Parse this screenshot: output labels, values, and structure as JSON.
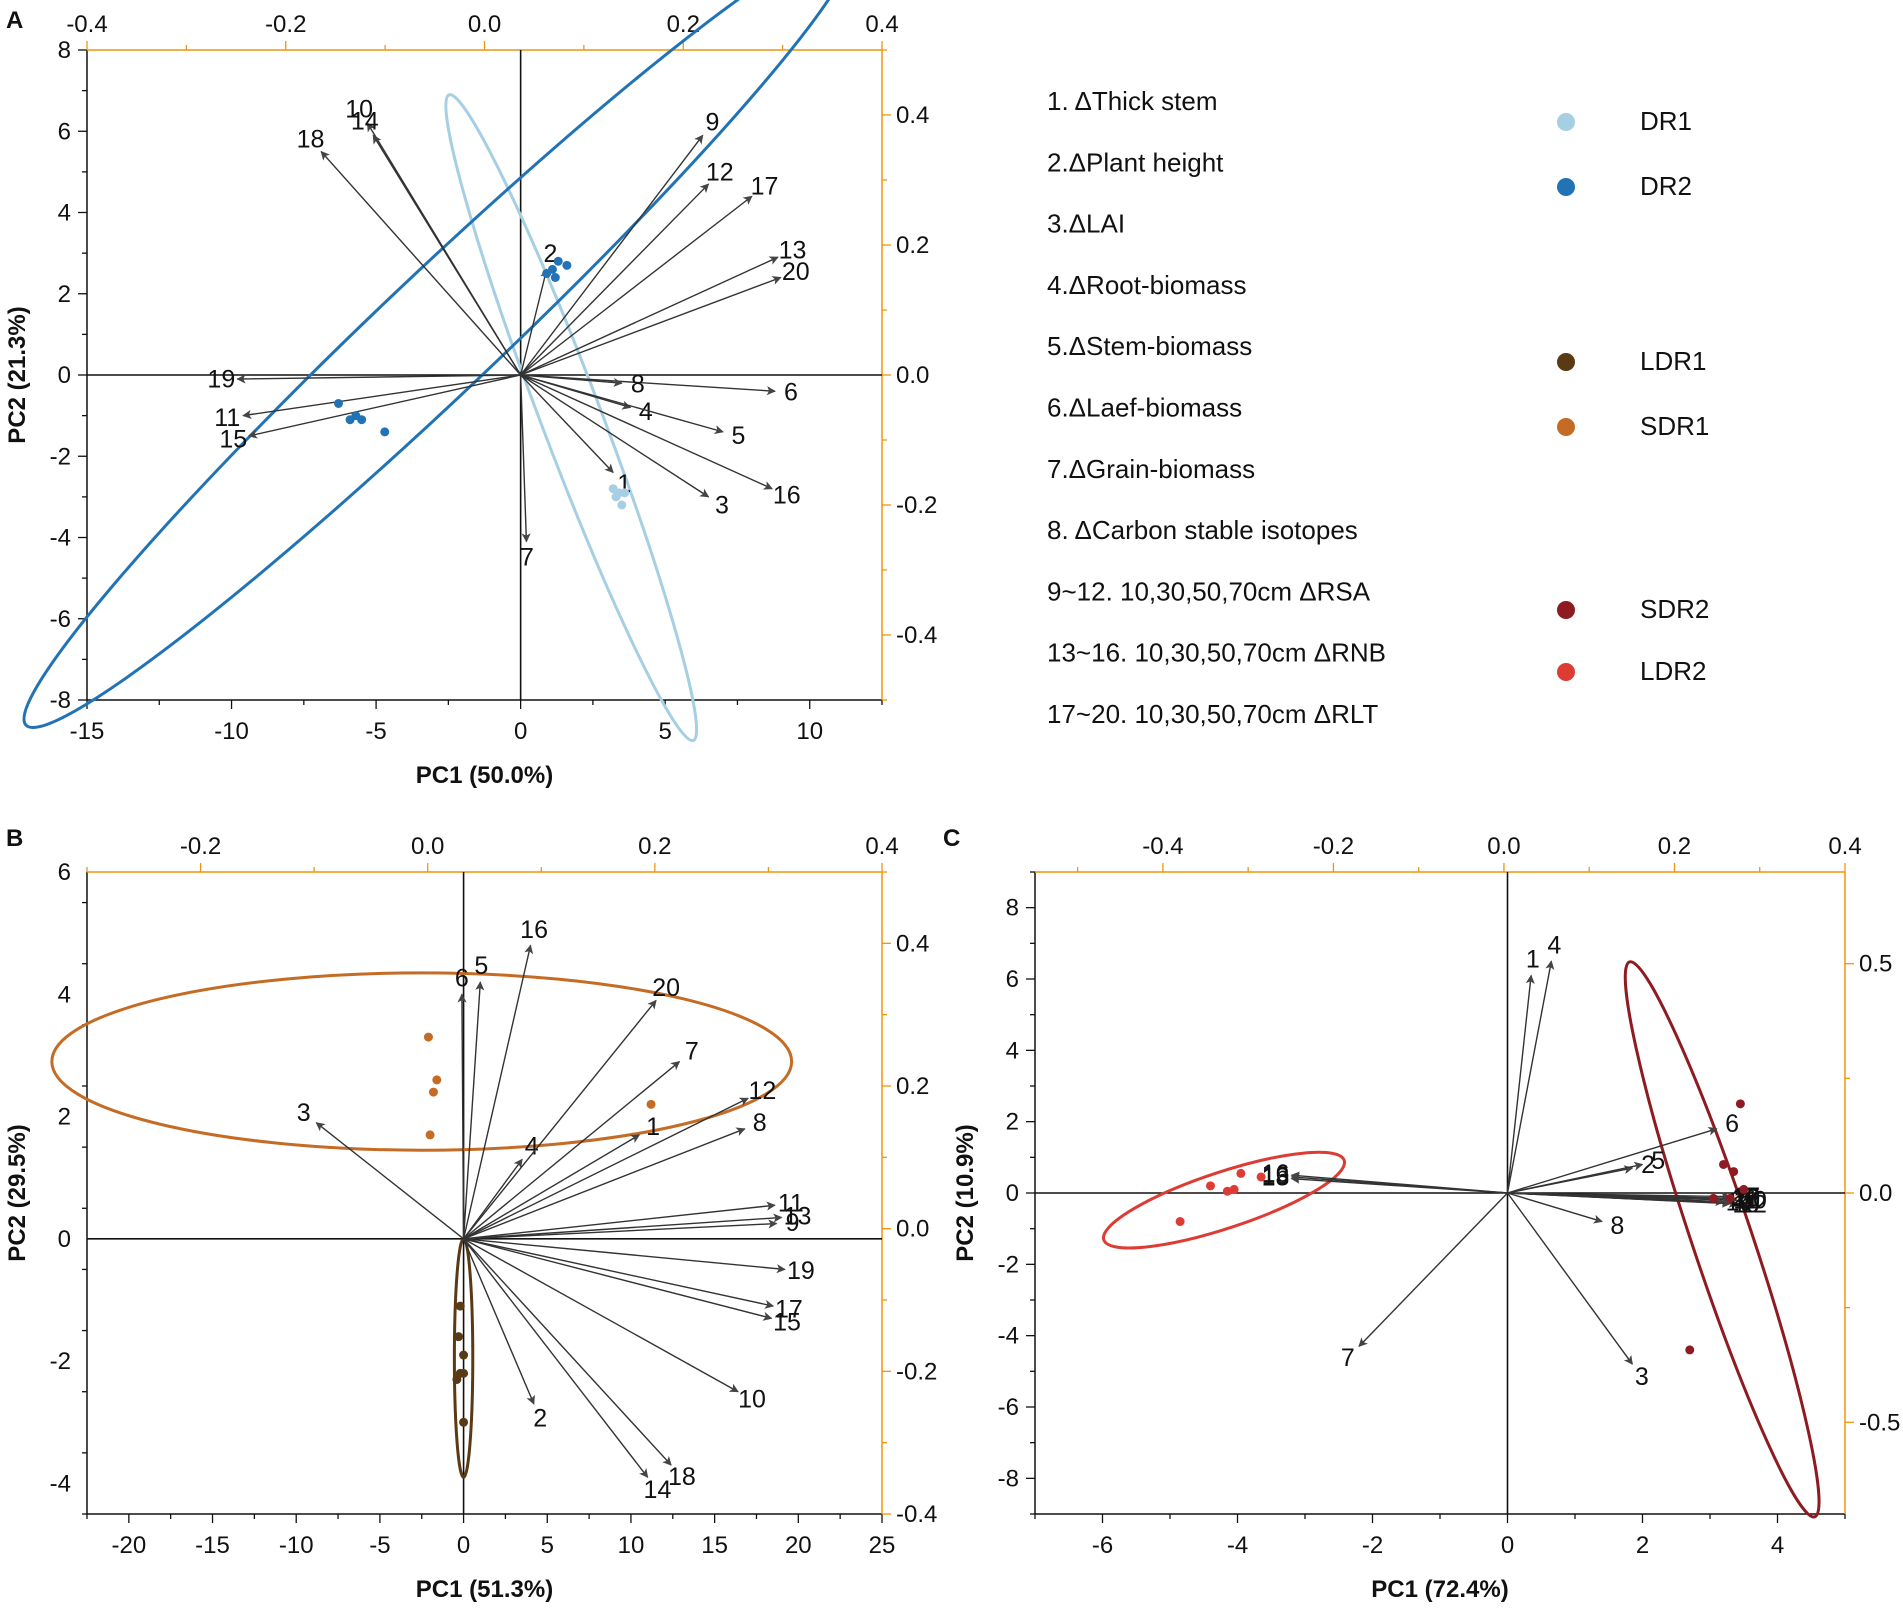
{
  "colors": {
    "DR1": "#a6cfe3",
    "DR2": "#2273b5",
    "LDR1": "#5a3a14",
    "SDR1": "#c46c25",
    "SDR2": "#8e1b22",
    "LDR2": "#dd3c35",
    "axis_secondary": "#f0950a",
    "vector": "#333333"
  },
  "legend": {
    "variables": [
      "1. ΔThick stem",
      "2.ΔPlant height",
      "3.ΔLAI",
      "4.ΔRoot-biomass",
      "5.ΔStem-biomass",
      "6.ΔLaef-biomass",
      "7.ΔGrain-biomass",
      "8. ΔCarbon stable isotopes",
      "9~12. 10,30,50,70cm ΔRSA",
      "13~16. 10,30,50,70cm ΔRNB",
      "17~20. 10,30,50,70cm ΔRLT"
    ],
    "groups": [
      {
        "name": "DR1",
        "color": "#a6cfe3"
      },
      {
        "name": "DR2",
        "color": "#2273b5"
      },
      {
        "name": "LDR1",
        "color": "#5a3a14"
      },
      {
        "name": "SDR1",
        "color": "#c46c25"
      },
      {
        "name": "SDR2",
        "color": "#8e1b22"
      },
      {
        "name": "LDR2",
        "color": "#dd3c35"
      }
    ]
  },
  "chart_data": [
    {
      "panel": "A",
      "type": "scatter",
      "title": "",
      "xlabel": "PC1 (50.0%)",
      "ylabel": "PC2 (21.3%)",
      "xlim": [
        -15,
        12.5
      ],
      "ylim": [
        -8,
        8
      ],
      "xticks": [
        -15,
        -10,
        -5,
        0,
        5,
        10
      ],
      "yticks": [
        -8,
        -6,
        -4,
        -2,
        0,
        2,
        4,
        6,
        8
      ],
      "top_axis": {
        "lim": [
          -0.4,
          0.4
        ],
        "ticks": [
          -0.4,
          -0.2,
          0.0,
          0.2,
          0.4
        ]
      },
      "right_axis": {
        "lim": [
          -0.5,
          0.5
        ],
        "ticks": [
          -0.4,
          -0.2,
          0.0,
          0.2,
          0.4
        ]
      },
      "vectors": [
        {
          "label": "1",
          "x": 3.2,
          "y": -2.4
        },
        {
          "label": "2",
          "x": 0.9,
          "y": 2.6
        },
        {
          "label": "3",
          "x": 6.5,
          "y": -3.0
        },
        {
          "label": "4",
          "x": 3.8,
          "y": -0.8
        },
        {
          "label": "5",
          "x": 7.0,
          "y": -1.4
        },
        {
          "label": "6",
          "x": 8.8,
          "y": -0.4
        },
        {
          "label": "7",
          "x": 0.2,
          "y": -4.1
        },
        {
          "label": "8",
          "x": 3.5,
          "y": -0.2
        },
        {
          "label": "9",
          "x": 6.3,
          "y": 5.9
        },
        {
          "label": "10",
          "x": -5.3,
          "y": 6.2
        },
        {
          "label": "11",
          "x": -9.6,
          "y": -1.0
        },
        {
          "label": "12",
          "x": 6.5,
          "y": 4.7
        },
        {
          "label": "13",
          "x": 8.9,
          "y": 2.9
        },
        {
          "label": "14",
          "x": -5.1,
          "y": 5.9
        },
        {
          "label": "15",
          "x": -9.4,
          "y": -1.5
        },
        {
          "label": "16",
          "x": 8.7,
          "y": -2.8
        },
        {
          "label": "17",
          "x": 8.0,
          "y": 4.4
        },
        {
          "label": "18",
          "x": -6.9,
          "y": 5.5
        },
        {
          "label": "19",
          "x": -9.8,
          "y": -0.1
        },
        {
          "label": "20",
          "x": 9.0,
          "y": 2.4
        }
      ],
      "groups": [
        {
          "name": "DR1",
          "points": [
            [
              3.2,
              -2.8
            ],
            [
              3.4,
              -2.9
            ],
            [
              3.5,
              -3.2
            ],
            [
              3.3,
              -3.0
            ],
            [
              3.6,
              -2.9
            ]
          ]
        },
        {
          "name": "DR2",
          "points": [
            [
              0.9,
              2.5
            ],
            [
              1.1,
              2.6
            ],
            [
              1.3,
              2.8
            ],
            [
              1.6,
              2.7
            ],
            [
              1.2,
              2.4
            ],
            [
              -6.3,
              -0.7
            ],
            [
              -5.7,
              -1.0
            ],
            [
              -5.5,
              -1.1
            ],
            [
              -5.9,
              -1.1
            ],
            [
              -4.7,
              -1.4
            ]
          ]
        }
      ],
      "ellipses": [
        {
          "group": "DR1",
          "center": [
            1.75,
            -1.05
          ],
          "rx": 9.0,
          "ry": 0.95,
          "angle_deg": -62
        },
        {
          "group": "DR2",
          "center": [
            -2.85,
            1.0
          ],
          "rx": 17.2,
          "ry": 1.6,
          "angle_deg": 34
        }
      ]
    },
    {
      "panel": "B",
      "type": "scatter",
      "title": "",
      "xlabel": "PC1 (51.3%)",
      "ylabel": "PC2 (29.5%)",
      "xlim": [
        -22.5,
        25
      ],
      "ylim": [
        -4.5,
        6
      ],
      "xticks": [
        -20,
        -15,
        -10,
        -5,
        0,
        5,
        10,
        15,
        20,
        25
      ],
      "yticks": [
        -4,
        -2,
        0,
        2,
        4,
        6
      ],
      "top_axis": {
        "lim": [
          -0.3,
          0.4
        ],
        "ticks": [
          -0.2,
          0.0,
          0.2,
          0.4
        ]
      },
      "right_axis": {
        "lim": [
          -0.4,
          0.5
        ],
        "ticks": [
          -0.4,
          -0.2,
          0.0,
          0.2,
          0.4
        ]
      },
      "vectors": [
        {
          "label": "1",
          "x": 10.5,
          "y": 1.7
        },
        {
          "label": "2",
          "x": 4.2,
          "y": -2.7
        },
        {
          "label": "3",
          "x": -8.8,
          "y": 1.9
        },
        {
          "label": "4",
          "x": 3.5,
          "y": 1.3
        },
        {
          "label": "5",
          "x": 1.0,
          "y": 4.2
        },
        {
          "label": "6",
          "x": -0.1,
          "y": 4.0
        },
        {
          "label": "7",
          "x": 12.9,
          "y": 2.9
        },
        {
          "label": "8",
          "x": 16.8,
          "y": 1.8
        },
        {
          "label": "9",
          "x": 18.7,
          "y": 0.25
        },
        {
          "label": "10",
          "x": 16.4,
          "y": -2.5
        },
        {
          "label": "11",
          "x": 18.6,
          "y": 0.55
        },
        {
          "label": "12",
          "x": 17.0,
          "y": 2.3
        },
        {
          "label": "13",
          "x": 19.0,
          "y": 0.35
        },
        {
          "label": "14",
          "x": 11.0,
          "y": -3.9
        },
        {
          "label": "15",
          "x": 18.4,
          "y": -1.3
        },
        {
          "label": "16",
          "x": 4.0,
          "y": 4.8
        },
        {
          "label": "17",
          "x": 18.5,
          "y": -1.1
        },
        {
          "label": "18",
          "x": 12.4,
          "y": -3.7
        },
        {
          "label": "19",
          "x": 19.2,
          "y": -0.5
        },
        {
          "label": "20",
          "x": 11.5,
          "y": 3.9
        }
      ],
      "groups": [
        {
          "name": "SDR1",
          "points": [
            [
              -2.1,
              3.3
            ],
            [
              -1.6,
              2.6
            ],
            [
              -1.8,
              2.4
            ],
            [
              -2.0,
              1.7
            ],
            [
              11.2,
              2.2
            ]
          ]
        },
        {
          "name": "LDR1",
          "points": [
            [
              -0.2,
              -1.1
            ],
            [
              -0.3,
              -1.6
            ],
            [
              0.0,
              -1.9
            ],
            [
              -0.2,
              -2.2
            ],
            [
              -0.4,
              -2.3
            ],
            [
              0.0,
              -2.2
            ],
            [
              0.0,
              -3.0
            ]
          ]
        }
      ],
      "ellipses": [
        {
          "group": "SDR1",
          "center": [
            -2.5,
            2.9
          ],
          "rx": 22.1,
          "ry": 1.45,
          "angle_deg": 0
        },
        {
          "group": "LDR1",
          "center": [
            0,
            -1.95
          ],
          "rx": 0.55,
          "ry": 1.95,
          "angle_deg": 0
        }
      ]
    },
    {
      "panel": "C",
      "type": "scatter",
      "title": "",
      "xlabel": "PC1 (72.4%)",
      "ylabel": "PC2 (10.9%)",
      "xlim": [
        -7,
        5
      ],
      "ylim": [
        -9,
        9
      ],
      "xticks": [
        -6,
        -4,
        -2,
        0,
        2,
        4
      ],
      "yticks": [
        -8,
        -6,
        -4,
        -2,
        0,
        2,
        4,
        6,
        8
      ],
      "top_axis": {
        "lim": [
          -0.55,
          0.4
        ],
        "ticks": [
          -0.4,
          -0.2,
          0.0,
          0.2,
          0.4
        ]
      },
      "right_axis": {
        "lim": [
          -0.7,
          0.7
        ],
        "ticks": [
          -0.5,
          0.0,
          0.5
        ]
      },
      "vectors": [
        {
          "label": "1",
          "x": 0.35,
          "y": 6.1
        },
        {
          "label": "2",
          "x": 1.85,
          "y": 0.7
        },
        {
          "label": "3",
          "x": 1.85,
          "y": -4.8
        },
        {
          "label": "4",
          "x": 0.65,
          "y": 6.5
        },
        {
          "label": "5",
          "x": 2.0,
          "y": 0.8
        },
        {
          "label": "6",
          "x": 3.1,
          "y": 1.8
        },
        {
          "label": "7",
          "x": -2.2,
          "y": -4.3
        },
        {
          "label": "8",
          "x": 1.4,
          "y": -0.8
        },
        {
          "label": "9",
          "x": 3.3,
          "y": -0.25
        },
        {
          "label": "10",
          "x": 3.4,
          "y": -0.2
        },
        {
          "label": "11",
          "x": 3.3,
          "y": -0.2
        },
        {
          "label": "12",
          "x": 3.4,
          "y": -0.3
        },
        {
          "label": "13",
          "x": -3.2,
          "y": 0.45
        },
        {
          "label": "14",
          "x": 3.2,
          "y": -0.25
        },
        {
          "label": "15",
          "x": 3.3,
          "y": -0.15
        },
        {
          "label": "16",
          "x": -3.2,
          "y": 0.5
        },
        {
          "label": "17",
          "x": 3.3,
          "y": -0.1
        },
        {
          "label": "18",
          "x": -3.2,
          "y": 0.4
        },
        {
          "label": "19",
          "x": 3.3,
          "y": -0.3
        },
        {
          "label": "20",
          "x": 3.3,
          "y": -0.15
        }
      ],
      "groups": [
        {
          "name": "SDR2",
          "points": [
            [
              3.45,
              2.5
            ],
            [
              3.2,
              0.8
            ],
            [
              3.35,
              0.6
            ],
            [
              3.05,
              -0.15
            ],
            [
              3.3,
              -0.15
            ],
            [
              3.5,
              0.1
            ],
            [
              2.7,
              -4.4
            ]
          ]
        },
        {
          "name": "LDR2",
          "points": [
            [
              -4.05,
              0.1
            ],
            [
              -4.4,
              0.2
            ],
            [
              -3.95,
              0.55
            ],
            [
              -3.65,
              0.45
            ],
            [
              -4.15,
              0.05
            ],
            [
              -4.85,
              -0.8
            ]
          ]
        }
      ],
      "ellipses": [
        {
          "group": "SDR2",
          "center": [
            3.18,
            -1.3
          ],
          "rx": 7.9,
          "ry": 0.45,
          "angle_deg": -80
        },
        {
          "group": "LDR2",
          "center": [
            -4.2,
            -0.2
          ],
          "rx": 2.1,
          "ry": 0.6,
          "angle_deg": 32
        }
      ]
    }
  ]
}
